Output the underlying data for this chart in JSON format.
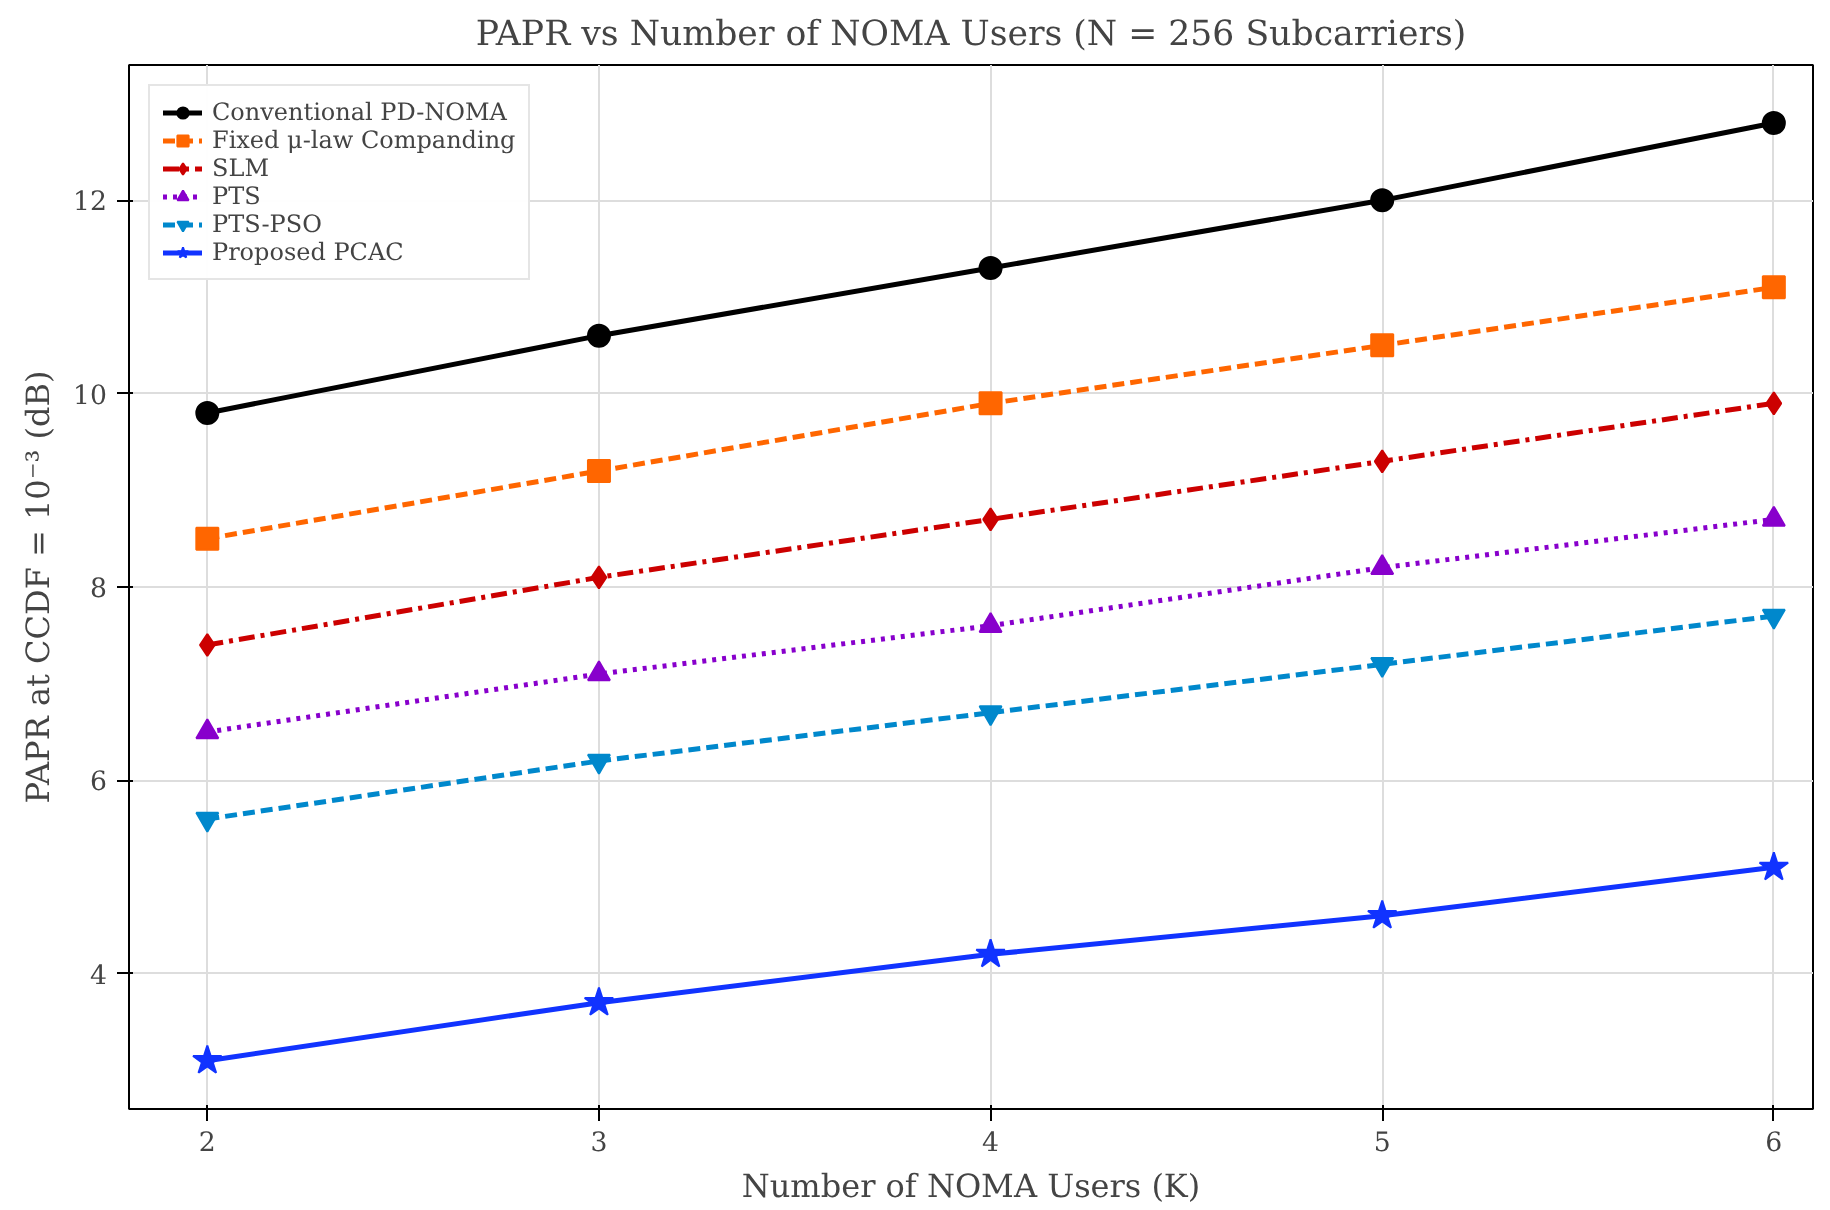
{
  "chart_data": {
    "type": "line",
    "title": "PAPR vs Number of NOMA Users (N = 256 Subcarriers)",
    "xlabel": "Number of NOMA Users (K)",
    "ylabel": "PAPR at CCDF = 10⁻³ (dB)",
    "x": [
      2,
      3,
      4,
      5,
      6
    ],
    "xlim": [
      1.8,
      6.1
    ],
    "xticks": [
      2,
      3,
      4,
      5,
      6
    ],
    "ylim": [
      2.6,
      13.4
    ],
    "yticks": [
      4,
      6,
      8,
      10,
      12
    ],
    "grid": true,
    "legend": "top left",
    "series": [
      {
        "name": "Conventional PD-NOMA",
        "color": "#000000",
        "marker": "circle",
        "line_style": "solid",
        "values": [
          9.8,
          10.6,
          11.3,
          12.0,
          12.8
        ]
      },
      {
        "name": "Fixed μ-law Companding",
        "color": "#ff6600",
        "marker": "square",
        "line_style": "dashed",
        "values": [
          8.5,
          9.2,
          9.9,
          10.5,
          11.1
        ]
      },
      {
        "name": "SLM",
        "color": "#cc0000",
        "marker": "diamond",
        "line_style": "dashdot",
        "values": [
          7.4,
          8.1,
          8.7,
          9.3,
          9.9
        ]
      },
      {
        "name": "PTS",
        "color": "#8800cc",
        "marker": "triangle",
        "line_style": "dotted",
        "values": [
          6.5,
          7.1,
          7.6,
          8.2,
          8.7
        ]
      },
      {
        "name": "PTS-PSO",
        "color": "#0088cc",
        "marker": "triangle",
        "line_style": "dashed",
        "values": [
          5.6,
          6.2,
          6.7,
          7.2,
          7.7
        ]
      },
      {
        "name": "Proposed PCAC",
        "color": "#1133ff",
        "marker": "star",
        "line_style": "solid",
        "values": [
          3.1,
          3.7,
          4.2,
          4.6,
          5.1
        ]
      }
    ]
  }
}
